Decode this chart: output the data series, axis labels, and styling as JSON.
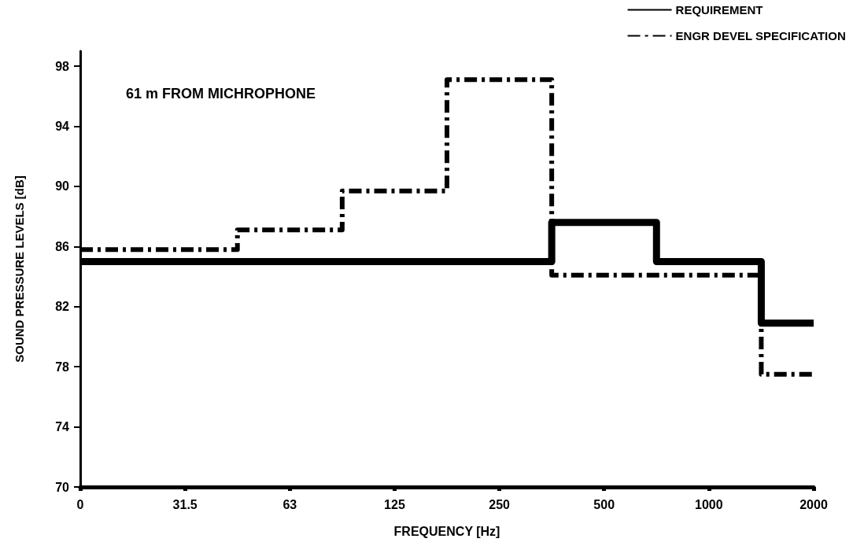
{
  "chart_data": {
    "type": "step",
    "xlabel": "FREQUENCY [Hz]",
    "ylabel": "SOUND PRESSURE LEVELS [dB]",
    "annotations": [
      "61 m FROM MICHROPHONE"
    ],
    "categories": [
      "0",
      "31.5",
      "63",
      "125",
      "250",
      "500",
      "1000",
      "2000"
    ],
    "series": [
      {
        "name": "REQUIREMENT",
        "color": "#000000",
        "line_style": "solid",
        "values": [
          85,
          85,
          85,
          85,
          85,
          87.6,
          85,
          80.9
        ]
      },
      {
        "name": "ENGR DEVEL SPECIFICATION",
        "color": "#000000",
        "line_style": "dashed",
        "values": [
          85.8,
          85.8,
          87.1,
          89.7,
          97.1,
          84.1,
          84.1,
          77.5
        ]
      }
    ],
    "ylim": [
      70,
      99
    ],
    "yticks": [
      70,
      74,
      78,
      82,
      86,
      90,
      94,
      98
    ],
    "grid": false,
    "legend": "top right",
    "marker": "none"
  }
}
